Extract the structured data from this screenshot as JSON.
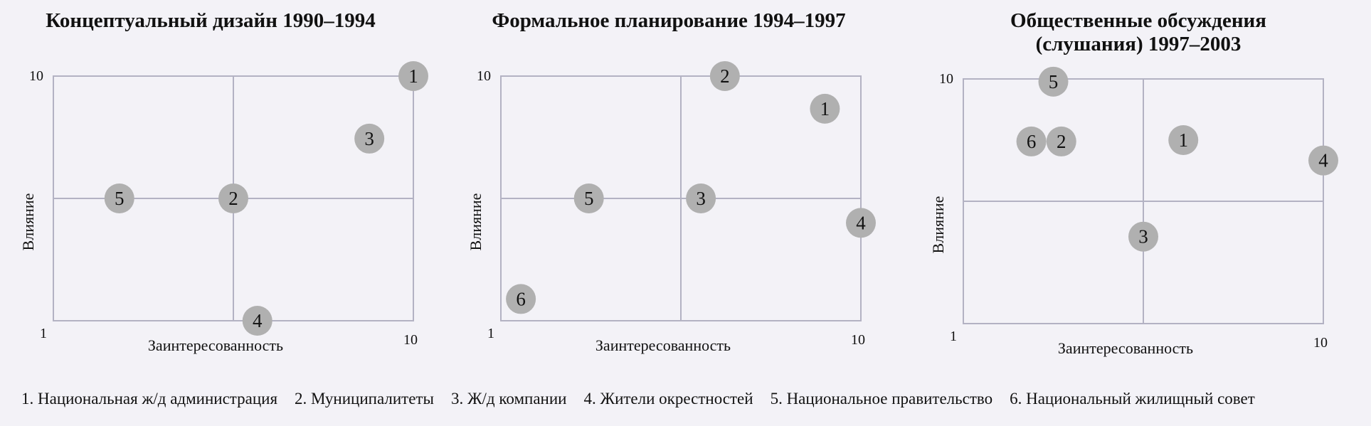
{
  "colors": {
    "background": "#f3f2f7",
    "grid": "#b3b2c3",
    "marker": "#b0b0b0",
    "text": "#111111"
  },
  "chart_data": [
    {
      "type": "scatter",
      "title": "Концептуальный дизайн 1990–1994",
      "xlabel": "Заинтересованность",
      "ylabel": "Влияние",
      "xlim": [
        1,
        10
      ],
      "ylim": [
        1,
        10
      ],
      "x_tick_labels": [
        "1",
        "10"
      ],
      "y_tick_labels": [
        "10"
      ],
      "grid": true,
      "points": [
        {
          "label": "1",
          "x": 10.0,
          "y": 10.0
        },
        {
          "label": "3",
          "x": 8.9,
          "y": 7.7
        },
        {
          "label": "5",
          "x": 2.65,
          "y": 5.5
        },
        {
          "label": "2",
          "x": 5.5,
          "y": 5.5
        },
        {
          "label": "4",
          "x": 6.1,
          "y": 1.0
        }
      ]
    },
    {
      "type": "scatter",
      "title": "Формальное планирование 1994–1997",
      "xlabel": "Заинтересованность",
      "ylabel": "Влияние",
      "xlim": [
        1,
        10
      ],
      "ylim": [
        1,
        10
      ],
      "x_tick_labels": [
        "1",
        "10"
      ],
      "y_tick_labels": [
        "10"
      ],
      "grid": true,
      "points": [
        {
          "label": "2",
          "x": 6.6,
          "y": 10.0
        },
        {
          "label": "1",
          "x": 9.1,
          "y": 8.8
        },
        {
          "label": "5",
          "x": 3.2,
          "y": 5.5
        },
        {
          "label": "3",
          "x": 6.0,
          "y": 5.5
        },
        {
          "label": "4",
          "x": 10.0,
          "y": 4.6
        },
        {
          "label": "6",
          "x": 1.5,
          "y": 1.8
        }
      ]
    },
    {
      "type": "scatter",
      "title": "Общественные обсуждения\n(слушания) 1997–2003",
      "title_lines": [
        "Общественные обсуждения",
        "(слушания) 1997–2003"
      ],
      "xlabel": "Заинтересованность",
      "ylabel": "Влияние",
      "xlim": [
        1,
        10
      ],
      "ylim": [
        1,
        10
      ],
      "x_tick_labels": [
        "1",
        "10"
      ],
      "y_tick_labels": [
        "10"
      ],
      "grid": true,
      "points": [
        {
          "label": "5",
          "x": 3.25,
          "y": 9.9
        },
        {
          "label": "6",
          "x": 2.7,
          "y": 7.7
        },
        {
          "label": "2",
          "x": 3.45,
          "y": 7.7
        },
        {
          "label": "1",
          "x": 6.5,
          "y": 7.75
        },
        {
          "label": "4",
          "x": 10.0,
          "y": 7.0
        },
        {
          "label": "3",
          "x": 5.5,
          "y": 4.2
        }
      ]
    }
  ],
  "legend": {
    "items": [
      "1. Национальная ж/д администрация",
      "2. Муниципалитеты",
      "3. Ж/д компании",
      "4. Жители окрестностей",
      "5. Национальное правительство",
      "6. Национальный жилищный совет"
    ]
  }
}
